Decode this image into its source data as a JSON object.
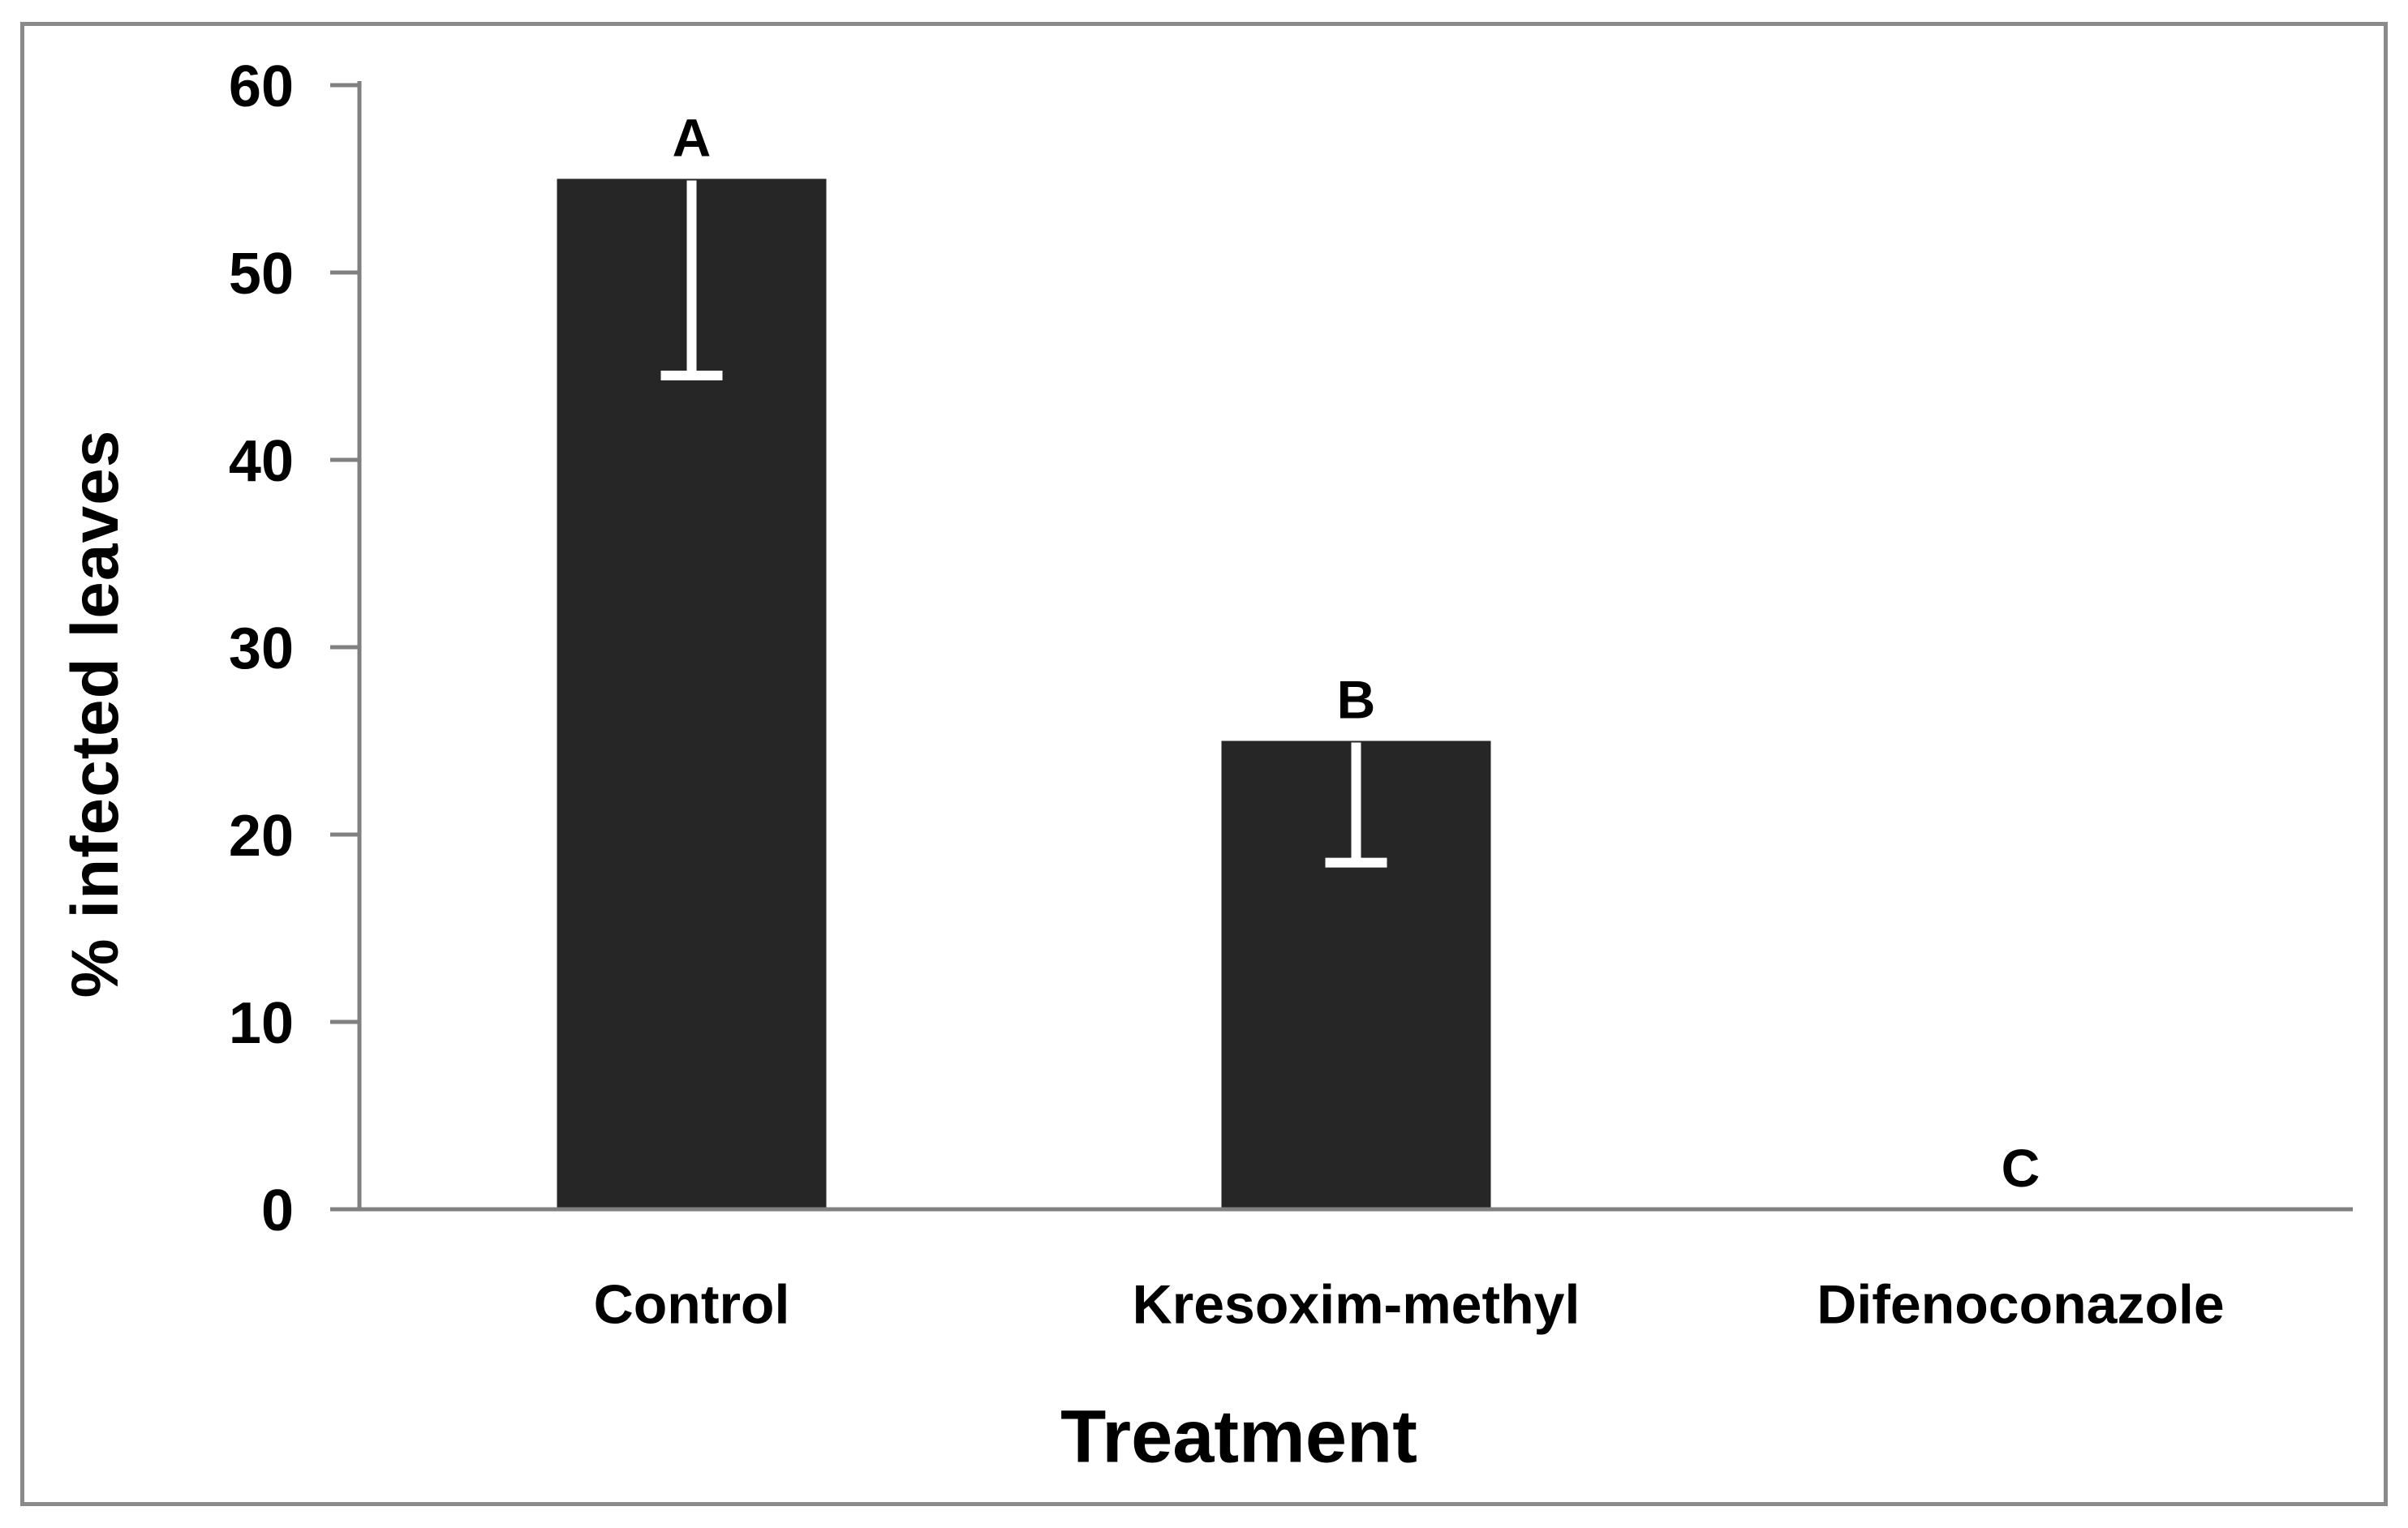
{
  "chart_data": {
    "type": "bar",
    "title": "",
    "categories": [
      "Control",
      "Kresoxim-methyl",
      "Difenoconazole"
    ],
    "values": [
      55,
      25,
      0
    ],
    "error_minus": [
      10.5,
      6.5,
      0
    ],
    "bar_letters": [
      "A",
      "B",
      "C"
    ],
    "xlabel": "Treatment",
    "ylabel": "% infected leaves",
    "ylim": [
      0,
      60
    ],
    "yticks": [
      0,
      10,
      20,
      30,
      40,
      50,
      60
    ],
    "grid": "off",
    "legend": "none",
    "layout_hints": {
      "bar_color_note": "single dark series, white one-sided downward error bars drawn inside bars",
      "axis_style": "gray axis lines with outward ticks, framed plot"
    },
    "colors": {
      "bar": "#262626",
      "axis": "#808080",
      "frame": "#8a8a8a",
      "error_bar": "#ffffff",
      "text": "#000000",
      "background": "#ffffff"
    }
  }
}
